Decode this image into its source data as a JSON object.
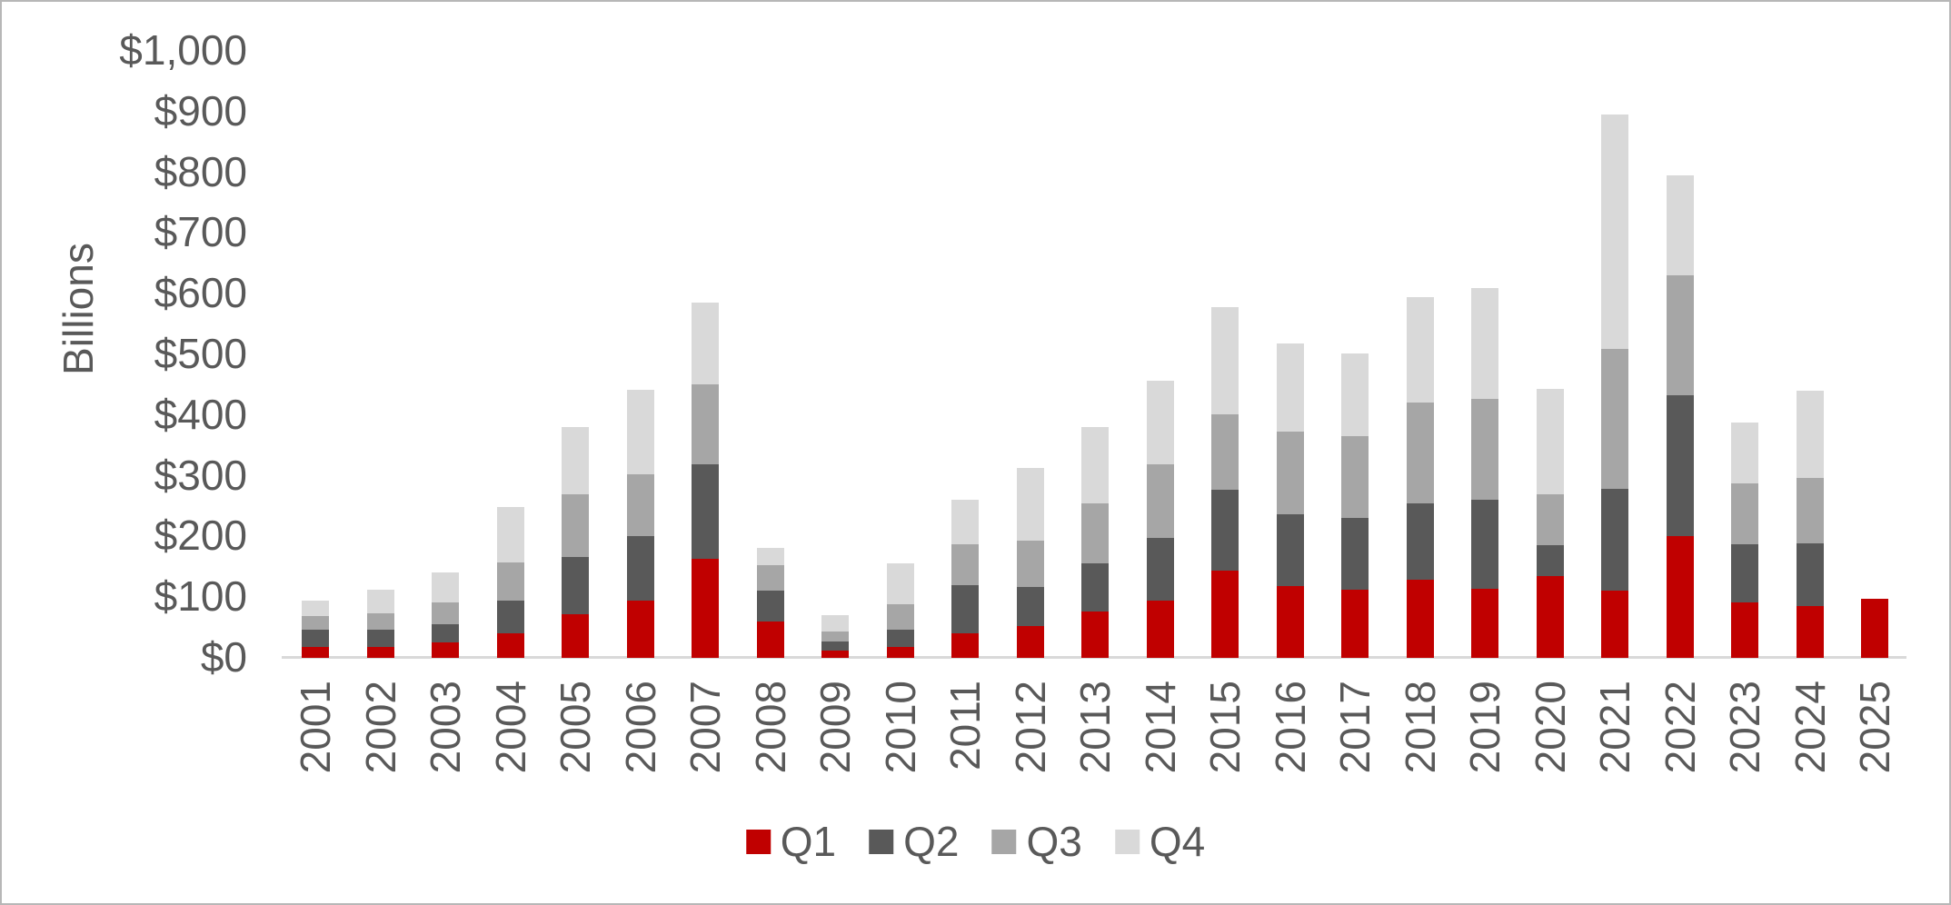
{
  "chart_data": {
    "type": "bar",
    "stacked": true,
    "title": "",
    "ylabel": "Billions",
    "xlabel": "",
    "grid": false,
    "legend_position": "bottom",
    "ylim": [
      0,
      1000
    ],
    "ytick_step": 100,
    "ytick_labels": [
      "$0",
      "$100",
      "$200",
      "$300",
      "$400",
      "$500",
      "$600",
      "$700",
      "$800",
      "$900",
      "$1,000"
    ],
    "categories": [
      "2001",
      "2002",
      "2003",
      "2004",
      "2005",
      "2006",
      "2007",
      "2008",
      "2009",
      "2010",
      "2011",
      "2012",
      "2013",
      "2014",
      "2015",
      "2016",
      "2017",
      "2018",
      "2019",
      "2020",
      "2021",
      "2022",
      "2023",
      "2024",
      "2025"
    ],
    "series": [
      {
        "name": "Q1",
        "color": "#C00000",
        "values": [
          18,
          18,
          26,
          40,
          72,
          95,
          163,
          60,
          12,
          18,
          40,
          52,
          76,
          94,
          143,
          118,
          112,
          128,
          113,
          134,
          111,
          200,
          91,
          85,
          97
        ]
      },
      {
        "name": "Q2",
        "color": "#595959",
        "values": [
          28,
          28,
          30,
          55,
          94,
          106,
          156,
          50,
          15,
          29,
          80,
          65,
          79,
          103,
          134,
          119,
          118,
          127,
          148,
          52,
          168,
          232,
          96,
          104,
          0
        ]
      },
      {
        "name": "Q3",
        "color": "#A6A6A6",
        "values": [
          23,
          28,
          35,
          62,
          104,
          102,
          132,
          42,
          16,
          41,
          67,
          76,
          99,
          122,
          124,
          135,
          136,
          165,
          166,
          84,
          230,
          198,
          100,
          108,
          0
        ]
      },
      {
        "name": "Q4",
        "color": "#D9D9D9",
        "values": [
          25,
          38,
          50,
          92,
          110,
          139,
          134,
          29,
          28,
          67,
          73,
          120,
          126,
          137,
          177,
          146,
          136,
          175,
          183,
          173,
          386,
          165,
          101,
          143,
          0
        ]
      }
    ]
  },
  "colors": {
    "text": "#595959",
    "axis_line": "#d9d9d9",
    "background": "#ffffff",
    "border": "#b7b7b7"
  }
}
